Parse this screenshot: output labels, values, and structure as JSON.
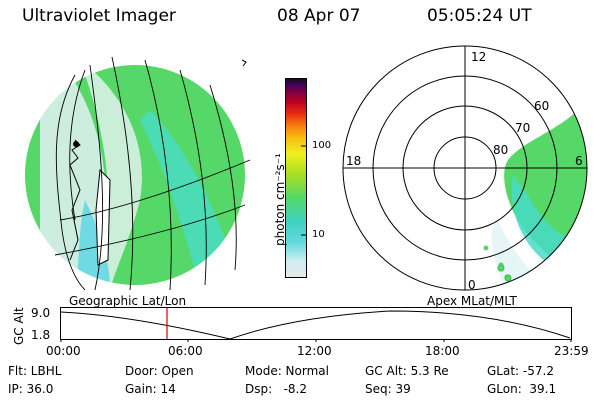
{
  "header": {
    "title": "Ultraviolet Imager",
    "date": "08 Apr 07",
    "time": "05:05:24 UT"
  },
  "colorbar": {
    "unit_label": "photon cm⁻²s⁻¹",
    "tick_100": "100",
    "tick_10": "10",
    "colors": [
      "#e8e8e8",
      "#d0eef2",
      "#60d8e0",
      "#3fd2c0",
      "#55d868",
      "#a8e020",
      "#f0f020",
      "#f8c010",
      "#f88010",
      "#e83010",
      "#c00020",
      "#800040",
      "#400060",
      "#101010"
    ]
  },
  "left_panel": {
    "caption": "Geographic Lat/Lon",
    "disk_color": "#55d868"
  },
  "right_panel": {
    "caption": "Apex MLat/MLT",
    "mlt_12": "12",
    "mlt_18": "18",
    "mlt_6": "6",
    "mlt_0": "0",
    "lat_60": "60",
    "lat_70": "70",
    "lat_80": "80"
  },
  "altitude_plot": {
    "ylabel": "GC Alt",
    "y_top": "9.0",
    "y_bottom": "1.8",
    "x_ticks": [
      "00:00",
      "06:00",
      "12:00",
      "18:00",
      "23:59"
    ],
    "marker_color": "#dd0000"
  },
  "footer": {
    "flt": "Flt: LBHL",
    "ip": "IP: 36.0",
    "door": "Door: Open",
    "gain": "Gain: 14",
    "mode": "Mode: Normal",
    "dsp": "Dsp:   -8.2",
    "gcalt": "GC Alt: 5.3 Re",
    "seq": "Seq: 39",
    "glat": "GLat: -57.2",
    "glon": "GLon:  39.1"
  }
}
